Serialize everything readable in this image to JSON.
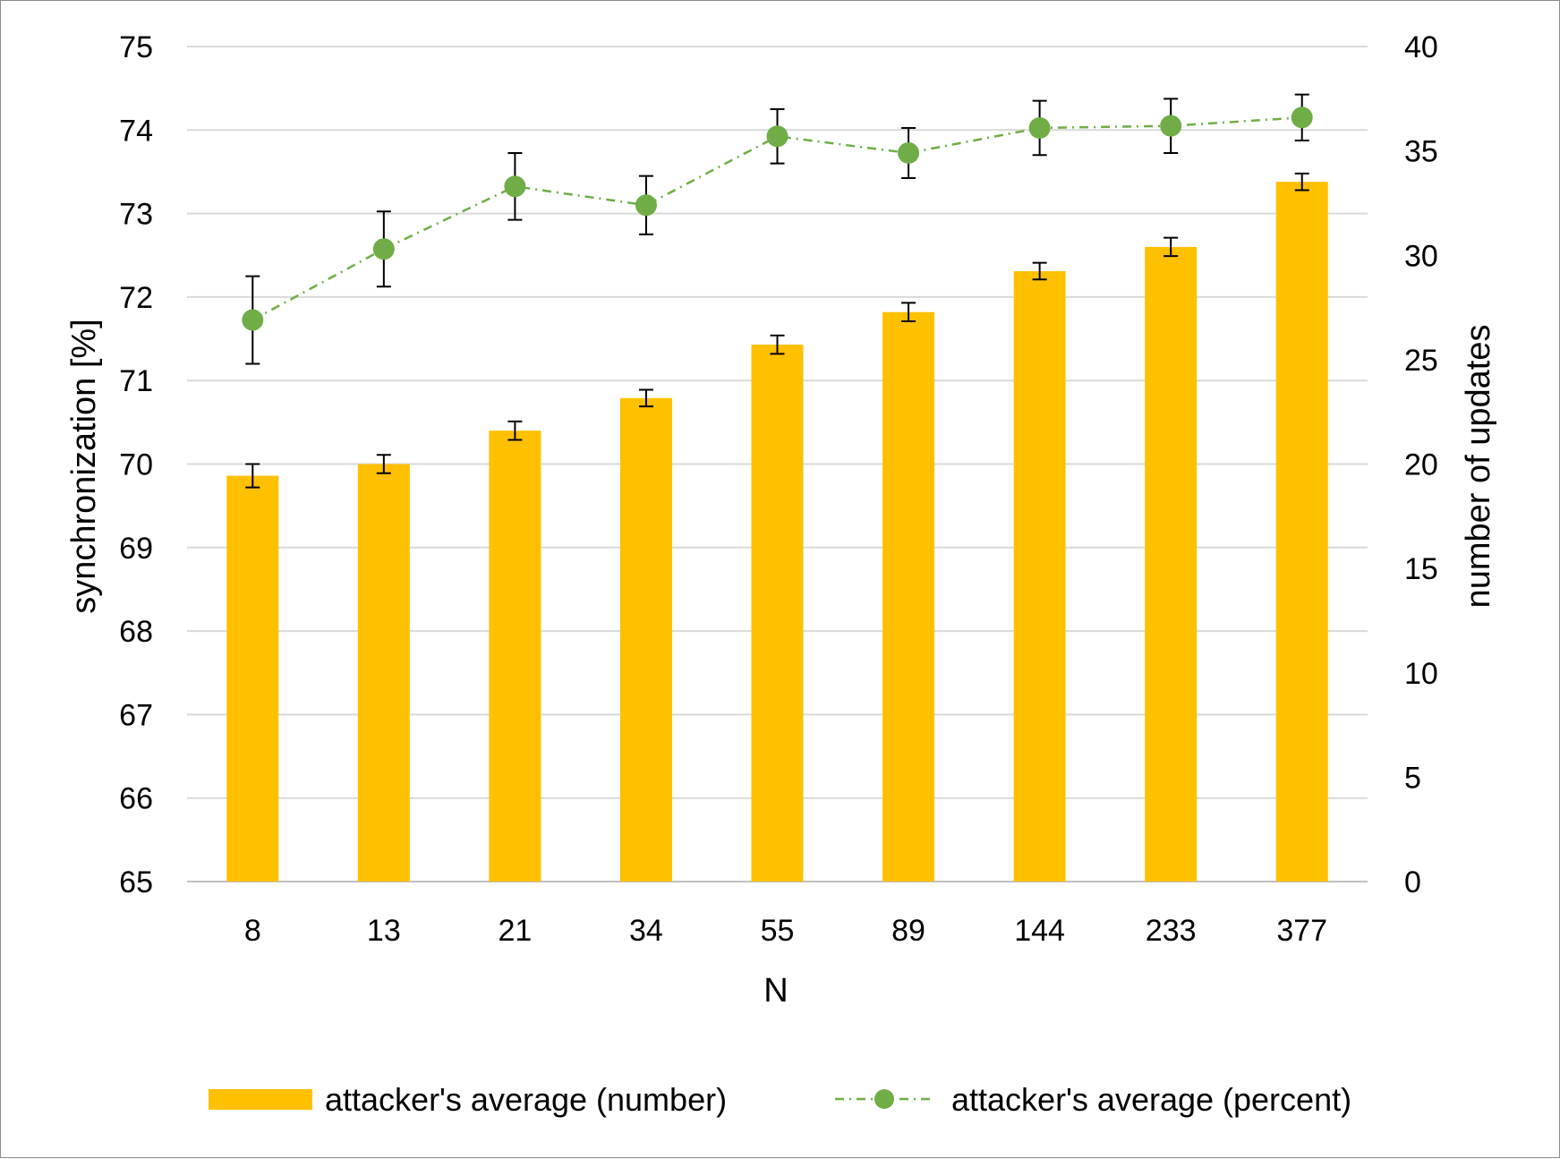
{
  "chart_data": {
    "type": "bar",
    "categories": [
      "8",
      "13",
      "21",
      "34",
      "55",
      "89",
      "144",
      "233",
      "377"
    ],
    "xlabel": "N",
    "ylabel_left": "synchronization [%]",
    "ylabel_right": "number of updates",
    "ylim_left": [
      65,
      75
    ],
    "ylim_right": [
      0,
      40
    ],
    "yticks_left": [
      "65",
      "66",
      "67",
      "68",
      "69",
      "70",
      "71",
      "72",
      "73",
      "74",
      "75"
    ],
    "yticks_right": [
      "0",
      "5",
      "10",
      "15",
      "20",
      "25",
      "30",
      "35",
      "40"
    ],
    "grid": true,
    "legend_position": "bottom",
    "series": [
      {
        "name": "attacker's average (number)",
        "kind": "bar",
        "axis": "left",
        "color": "#FFC000",
        "values": [
          69.86,
          70.0,
          70.4,
          70.79,
          71.43,
          71.82,
          72.31,
          72.6,
          73.38
        ],
        "error": [
          0.14,
          0.11,
          0.11,
          0.1,
          0.11,
          0.11,
          0.1,
          0.11,
          0.1
        ]
      },
      {
        "name": "attacker's average (percent)",
        "kind": "line",
        "axis": "right",
        "color": "#70AD47",
        "line_style": "dash-dot",
        "values": [
          26.9,
          30.3,
          33.3,
          32.4,
          35.7,
          34.9,
          36.1,
          36.2,
          36.6
        ],
        "error": [
          2.1,
          1.8,
          1.6,
          1.4,
          1.3,
          1.2,
          1.3,
          1.3,
          1.1
        ]
      }
    ]
  }
}
